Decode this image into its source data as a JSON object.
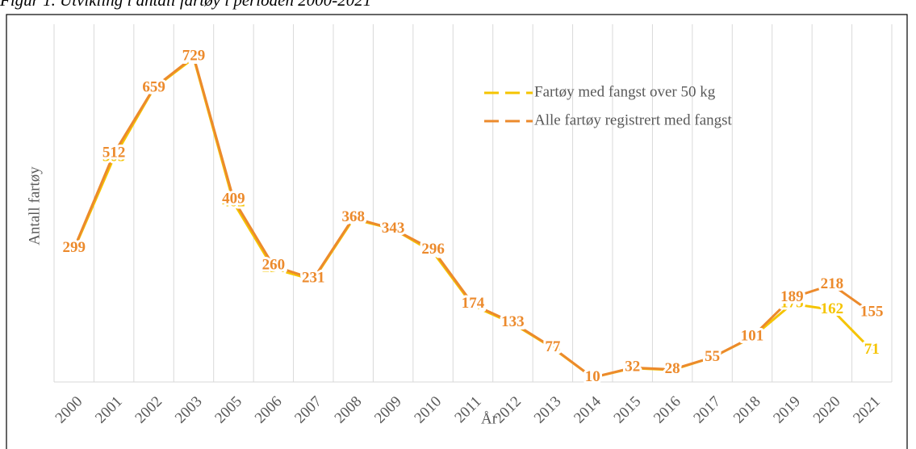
{
  "chart_data": {
    "type": "line",
    "title": "Figur 1. Utvikling i antall fartøy i perioden 2000-2021",
    "y_label": "Antall fartøy",
    "x_label": "År",
    "categories": [
      "2000",
      "2001",
      "2002",
      "2003",
      "2005",
      "2006",
      "2007",
      "2008",
      "2009",
      "2010",
      "2011",
      "2012",
      "2013",
      "2014",
      "2015",
      "2016",
      "2017",
      "2018",
      "2019",
      "2020",
      "2021"
    ],
    "series": [
      {
        "name": "Fartøy med fangst over 50 kg",
        "color": "#f5c400",
        "values": [
          297,
          503,
          658,
          726,
          402,
          254,
          229,
          365,
          343,
          291,
          171,
          131,
          76,
          10,
          31,
          27,
          55,
          100,
          175,
          162,
          71
        ]
      },
      {
        "name": "Alle fartøy registrert med fangst",
        "color": "#ec8a2c",
        "values": [
          299,
          512,
          659,
          729,
          409,
          260,
          231,
          368,
          343,
          296,
          174,
          133,
          77,
          10,
          32,
          28,
          55,
          101,
          189,
          218,
          155
        ]
      }
    ],
    "ylim": [
      0,
      800
    ],
    "grid": true
  }
}
